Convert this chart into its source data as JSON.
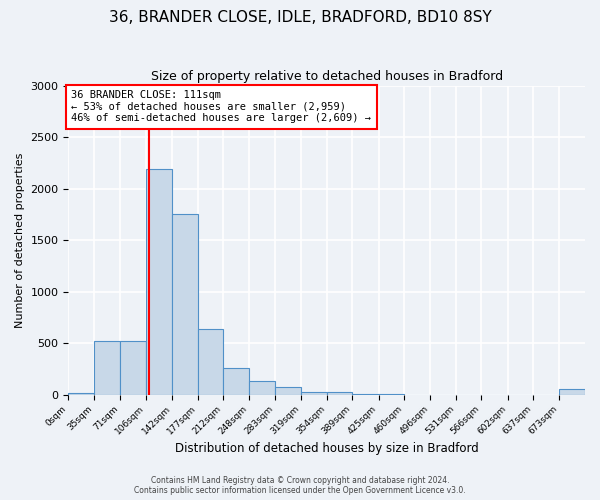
{
  "title": "36, BRANDER CLOSE, IDLE, BRADFORD, BD10 8SY",
  "subtitle": "Size of property relative to detached houses in Bradford",
  "xlabel": "Distribution of detached houses by size in Bradford",
  "ylabel": "Number of detached properties",
  "bin_edges": [
    0,
    35,
    71,
    106,
    142,
    177,
    212,
    248,
    283,
    319,
    354,
    389,
    425,
    460,
    496,
    531,
    566,
    602,
    637,
    673,
    708
  ],
  "bin_counts": [
    20,
    520,
    520,
    2190,
    1750,
    640,
    260,
    130,
    70,
    30,
    30,
    5,
    5,
    0,
    0,
    0,
    0,
    0,
    0,
    50
  ],
  "property_size": 111,
  "bar_color": "#c8d8e8",
  "bar_edge_color": "#5090c8",
  "vline_color": "red",
  "annotation_line1": "36 BRANDER CLOSE: 111sqm",
  "annotation_line2": "← 53% of detached houses are smaller (2,959)",
  "annotation_line3": "46% of semi-detached houses are larger (2,609) →",
  "annotation_box_color": "white",
  "annotation_box_edge_color": "red",
  "ylim": [
    0,
    3000
  ],
  "yticks": [
    0,
    500,
    1000,
    1500,
    2000,
    2500,
    3000
  ],
  "footer_line1": "Contains HM Land Registry data © Crown copyright and database right 2024.",
  "footer_line2": "Contains public sector information licensed under the Open Government Licence v3.0.",
  "background_color": "#eef2f7",
  "grid_color": "white"
}
